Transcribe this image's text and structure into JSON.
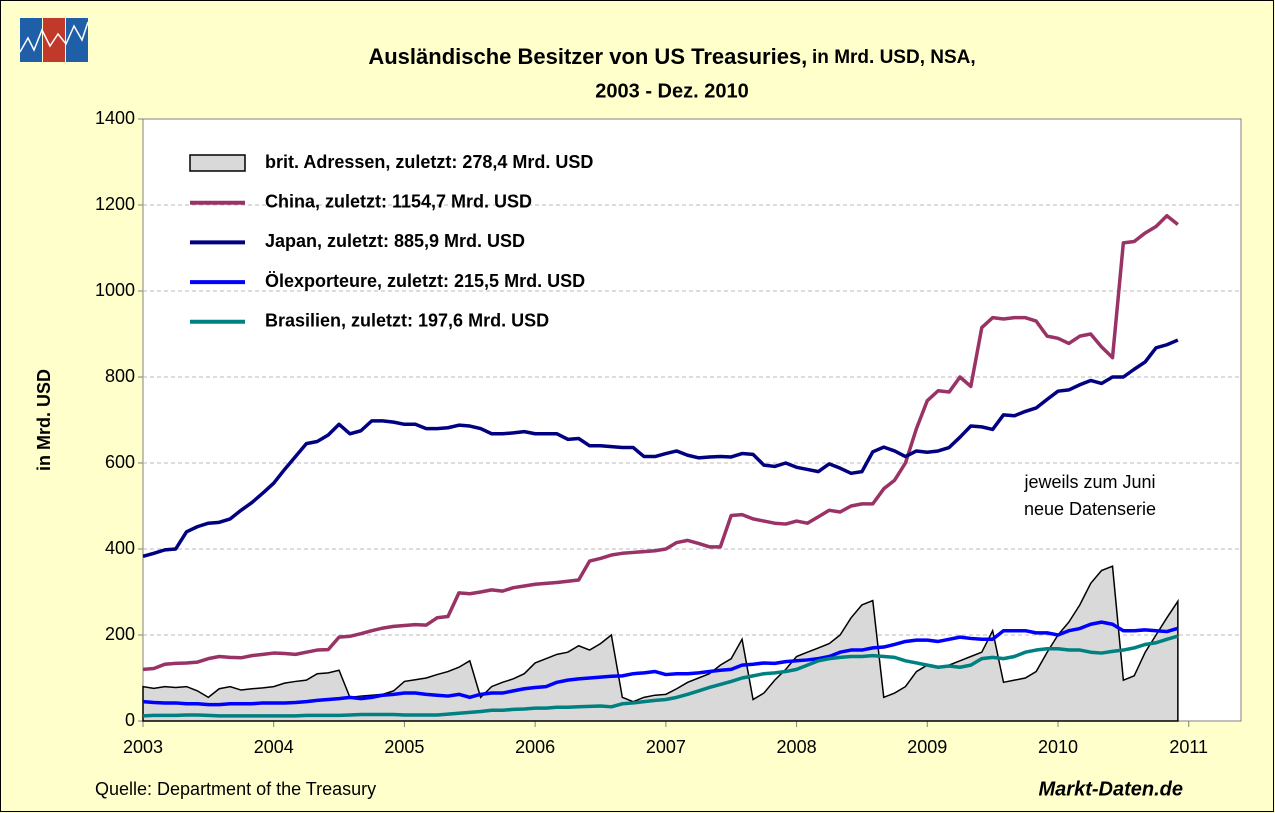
{
  "chart_data": {
    "type": "line",
    "title": [
      "Ausländische Besitzer von US Treasuries,",
      "in Mrd. USD, NSA,",
      "2003 - Dez. 2010"
    ],
    "ylabel": "in Mrd. USD",
    "annotation": [
      "jeweils zum Juni",
      "neue Datenserie"
    ],
    "source": "Quelle: Department of the Treasury",
    "brand": "Markt-Daten.de",
    "xlim": [
      2003,
      2011.4
    ],
    "xticks": [
      2003,
      2004,
      2005,
      2006,
      2007,
      2008,
      2009,
      2010,
      2011
    ],
    "ylim": [
      0,
      1400
    ],
    "yticks": [
      0,
      200,
      400,
      600,
      800,
      1000,
      1200,
      1400
    ],
    "grid": true,
    "x": [
      2003,
      2003.083,
      2003.167,
      2003.25,
      2003.333,
      2003.417,
      2003.5,
      2003.583,
      2003.667,
      2003.75,
      2003.833,
      2003.917,
      2004,
      2004.083,
      2004.167,
      2004.25,
      2004.333,
      2004.417,
      2004.5,
      2004.583,
      2004.667,
      2004.75,
      2004.833,
      2004.917,
      2005,
      2005.083,
      2005.167,
      2005.25,
      2005.333,
      2005.417,
      2005.5,
      2005.583,
      2005.667,
      2005.75,
      2005.833,
      2005.917,
      2006,
      2006.083,
      2006.167,
      2006.25,
      2006.333,
      2006.417,
      2006.5,
      2006.583,
      2006.667,
      2006.75,
      2006.833,
      2006.917,
      2007,
      2007.083,
      2007.167,
      2007.25,
      2007.333,
      2007.417,
      2007.5,
      2007.583,
      2007.667,
      2007.75,
      2007.833,
      2007.917,
      2008,
      2008.083,
      2008.167,
      2008.25,
      2008.333,
      2008.417,
      2008.5,
      2008.583,
      2008.667,
      2008.75,
      2008.833,
      2008.917,
      2009,
      2009.083,
      2009.167,
      2009.25,
      2009.333,
      2009.417,
      2009.5,
      2009.583,
      2009.667,
      2009.75,
      2009.833,
      2009.917,
      2010,
      2010.083,
      2010.167,
      2010.25,
      2010.333,
      2010.417,
      2010.5,
      2010.583,
      2010.667,
      2010.75,
      2010.833,
      2010.917
    ],
    "series": [
      {
        "name": "brit. Adressen, zuletzt: 278,4 Mrd. USD",
        "type": "area",
        "color": "#d9d9d9",
        "values": [
          80,
          76,
          80,
          78,
          80,
          70,
          55,
          75,
          80,
          72,
          75,
          77,
          80,
          88,
          92,
          95,
          110,
          112,
          118,
          55,
          58,
          60,
          62,
          70,
          92,
          96,
          100,
          108,
          115,
          125,
          140,
          55,
          80,
          90,
          98,
          110,
          135,
          145,
          155,
          160,
          175,
          165,
          180,
          200,
          55,
          45,
          55,
          60,
          62,
          75,
          90,
          100,
          110,
          130,
          145,
          190,
          50,
          65,
          95,
          120,
          150,
          160,
          170,
          180,
          200,
          240,
          270,
          280,
          55,
          65,
          80,
          115,
          130,
          125,
          130,
          140,
          150,
          160,
          210,
          90,
          95,
          100,
          115,
          160,
          200,
          230,
          270,
          320,
          350,
          360,
          95,
          105,
          160,
          200,
          240,
          278.4
        ]
      },
      {
        "name": "China, zuletzt: 1154,7 Mrd. USD",
        "color": "#993366",
        "values": [
          120,
          122,
          132,
          134,
          135,
          137,
          145,
          150,
          148,
          147,
          152,
          155,
          158,
          157,
          155,
          160,
          165,
          166,
          195,
          197,
          203,
          210,
          216,
          220,
          222,
          224,
          223,
          240,
          243,
          298,
          296,
          300,
          305,
          302,
          310,
          314,
          318,
          320,
          322,
          325,
          328,
          372,
          378,
          386,
          390,
          392,
          394,
          396,
          400,
          415,
          420,
          413,
          405,
          405,
          478,
          480,
          470,
          465,
          460,
          458,
          465,
          460,
          475,
          490,
          486,
          500,
          505,
          505,
          540,
          560,
          600,
          680,
          745,
          768,
          765,
          800,
          778,
          915,
          938,
          935,
          938,
          938,
          930,
          895,
          890,
          878,
          895,
          900,
          870,
          845,
          1112,
          1115,
          1135,
          1150,
          1175,
          1154.7
        ]
      },
      {
        "name": "Japan, zuletzt: 885,9 Mrd. USD",
        "color": "#000080",
        "values": [
          383,
          390,
          398,
          400,
          440,
          452,
          460,
          462,
          470,
          490,
          508,
          530,
          553,
          585,
          615,
          645,
          650,
          665,
          690,
          668,
          675,
          698,
          698,
          695,
          690,
          690,
          680,
          680,
          682,
          688,
          686,
          680,
          668,
          668,
          670,
          673,
          668,
          668,
          668,
          655,
          657,
          640,
          640,
          638,
          636,
          636,
          615,
          615,
          622,
          628,
          618,
          612,
          614,
          615,
          614,
          622,
          620,
          595,
          592,
          600,
          590,
          585,
          580,
          598,
          588,
          576,
          580,
          626,
          637,
          628,
          615,
          628,
          625,
          628,
          636,
          660,
          686,
          684,
          678,
          712,
          710,
          720,
          728,
          748,
          767,
          770,
          782,
          792,
          785,
          800,
          800,
          818,
          835,
          868,
          875,
          885.9
        ]
      },
      {
        "name": "Ölexporteure, zuletzt: 215,5 Mrd. USD",
        "color": "#0000ff",
        "values": [
          45,
          43,
          42,
          42,
          40,
          40,
          38,
          38,
          40,
          40,
          40,
          42,
          42,
          42,
          43,
          45,
          48,
          50,
          52,
          55,
          52,
          55,
          60,
          62,
          65,
          65,
          62,
          60,
          58,
          62,
          55,
          62,
          65,
          65,
          70,
          75,
          78,
          80,
          90,
          95,
          98,
          100,
          102,
          104,
          105,
          110,
          112,
          115,
          108,
          110,
          110,
          112,
          115,
          118,
          120,
          130,
          132,
          135,
          134,
          138,
          140,
          142,
          145,
          150,
          160,
          165,
          165,
          170,
          172,
          178,
          185,
          188,
          188,
          185,
          190,
          195,
          192,
          190,
          190,
          210,
          210,
          210,
          205,
          205,
          200,
          210,
          215,
          225,
          230,
          225,
          210,
          210,
          212,
          210,
          208,
          215.5
        ]
      },
      {
        "name": "Brasilien, zuletzt: 197,6 Mrd. USD",
        "color": "#008080",
        "values": [
          12,
          13,
          13,
          13,
          14,
          14,
          13,
          12,
          12,
          12,
          12,
          12,
          12,
          12,
          12,
          13,
          13,
          13,
          13,
          14,
          15,
          15,
          15,
          15,
          14,
          14,
          14,
          14,
          16,
          18,
          20,
          22,
          25,
          25,
          27,
          28,
          30,
          30,
          32,
          32,
          33,
          34,
          35,
          33,
          40,
          42,
          45,
          48,
          50,
          55,
          62,
          70,
          78,
          85,
          92,
          100,
          105,
          110,
          112,
          115,
          120,
          130,
          140,
          145,
          148,
          150,
          150,
          152,
          150,
          148,
          140,
          135,
          130,
          125,
          128,
          125,
          130,
          145,
          148,
          145,
          150,
          160,
          165,
          168,
          168,
          165,
          165,
          160,
          158,
          162,
          165,
          170,
          178,
          182,
          190,
          197.6
        ]
      }
    ]
  }
}
